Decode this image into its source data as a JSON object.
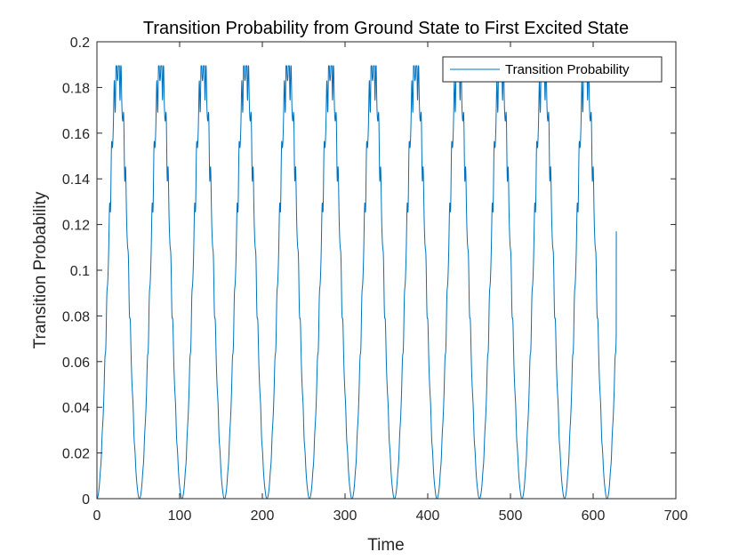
{
  "chart_data": {
    "type": "line",
    "title": "Transition Probability from Ground State to First Excited State",
    "xlabel": "Time",
    "ylabel": "Transition Probability",
    "xlim": [
      0,
      700
    ],
    "ylim": [
      0,
      0.2
    ],
    "xticks": [
      "0",
      "100",
      "200",
      "300",
      "400",
      "500",
      "600",
      "700"
    ],
    "yticks": [
      "0",
      "0.02",
      "0.04",
      "0.06",
      "0.08",
      "0.1",
      "0.12",
      "0.14",
      "0.16",
      "0.18",
      "0.2"
    ],
    "grid": false,
    "legend": {
      "position": "top-right",
      "entries": [
        "Transition Probability"
      ]
    },
    "series": [
      {
        "name": "Transition Probability",
        "color": "#0072BD",
        "x_range": [
          0,
          628
        ],
        "period": 51.4,
        "peak": 0.1895,
        "first_peak_x": 25.7,
        "final_value": 0.117
      }
    ]
  }
}
